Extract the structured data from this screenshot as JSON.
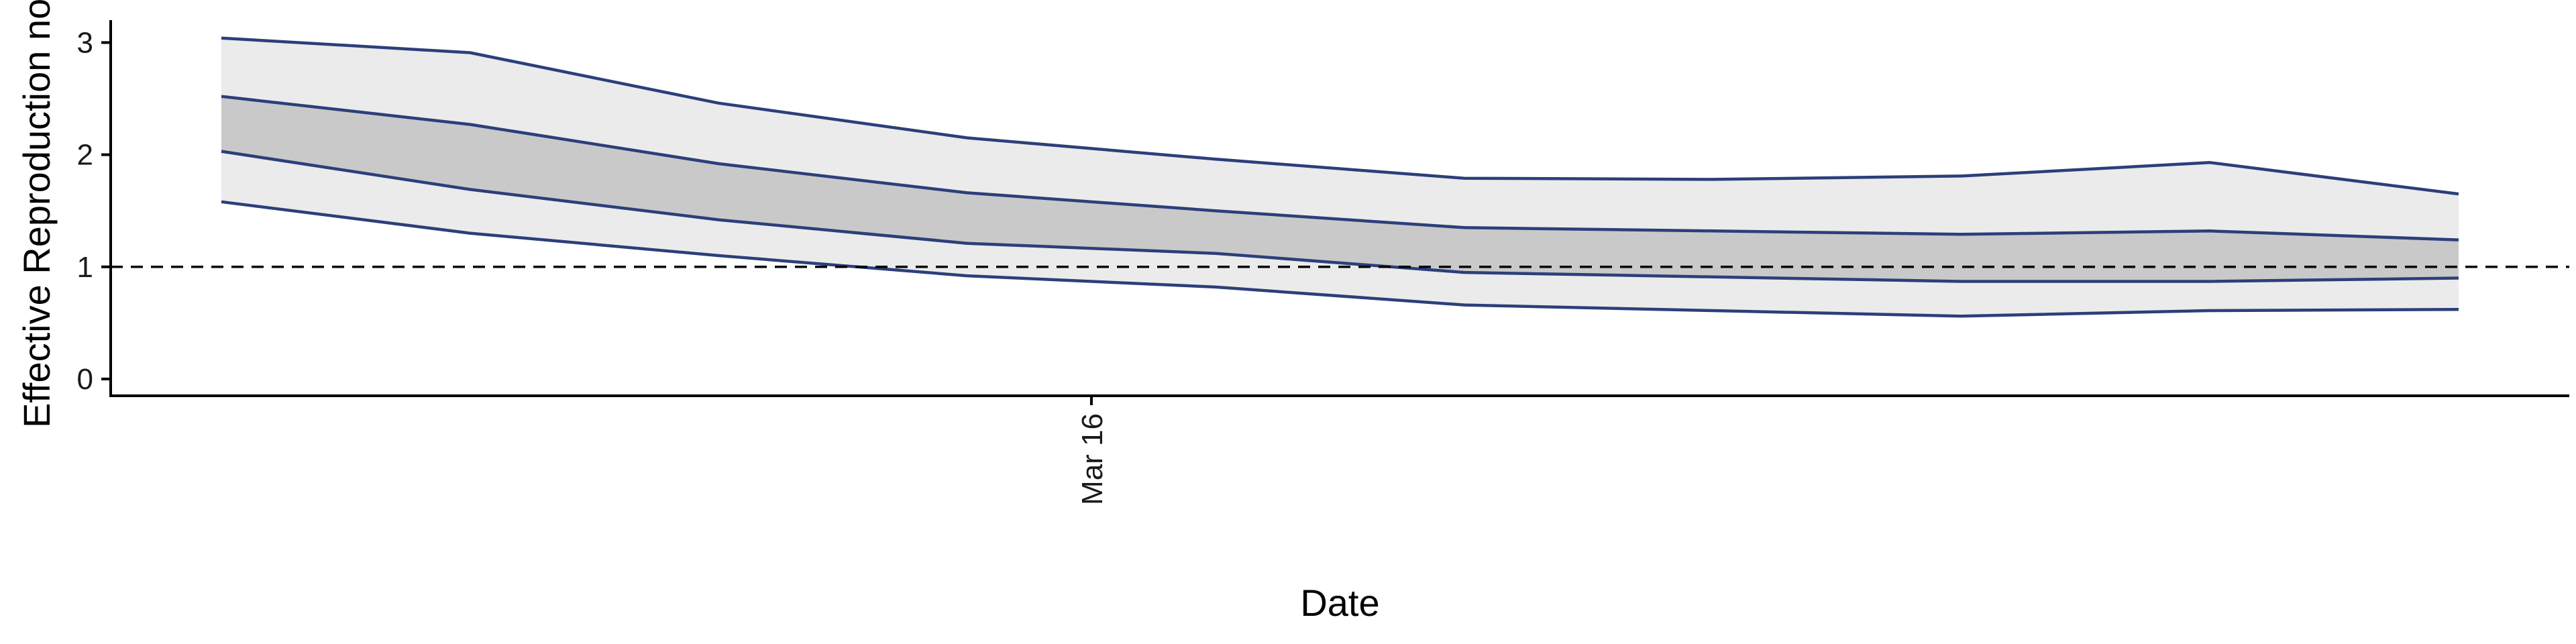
{
  "chart_data": {
    "type": "area",
    "title": "",
    "xlabel": "Date",
    "ylabel": "Effective Reproduction no.",
    "x": [
      "2020-03-02",
      "2020-03-06",
      "2020-03-10",
      "2020-03-14",
      "2020-03-18",
      "2020-03-22",
      "2020-03-26",
      "2020-03-30",
      "2020-04-03",
      "2020-04-07"
    ],
    "x_ticks": [
      {
        "value": "2020-03-16",
        "label": "Mar 16"
      }
    ],
    "ylim": [
      -0.15,
      3.2
    ],
    "y_ticks": [
      0,
      1,
      2,
      3
    ],
    "grid": false,
    "reference_line": {
      "y": 1,
      "style": "dashed",
      "color": "#000000"
    },
    "bands": [
      {
        "level": "outer",
        "lower": [
          1.58,
          1.3,
          1.1,
          0.92,
          0.82,
          0.66,
          0.61,
          0.56,
          0.61,
          0.62
        ],
        "upper": [
          3.04,
          2.91,
          2.46,
          2.15,
          1.96,
          1.79,
          1.78,
          1.81,
          1.93,
          1.65
        ],
        "fill": "#ebebeb"
      },
      {
        "level": "inner",
        "lower": [
          2.03,
          1.69,
          1.42,
          1.21,
          1.12,
          0.95,
          0.91,
          0.87,
          0.87,
          0.9
        ],
        "upper": [
          2.52,
          2.27,
          1.92,
          1.66,
          1.5,
          1.35,
          1.32,
          1.29,
          1.32,
          1.24
        ],
        "fill": "#c9c9c9"
      }
    ],
    "line_color": "#2b3f7a"
  }
}
